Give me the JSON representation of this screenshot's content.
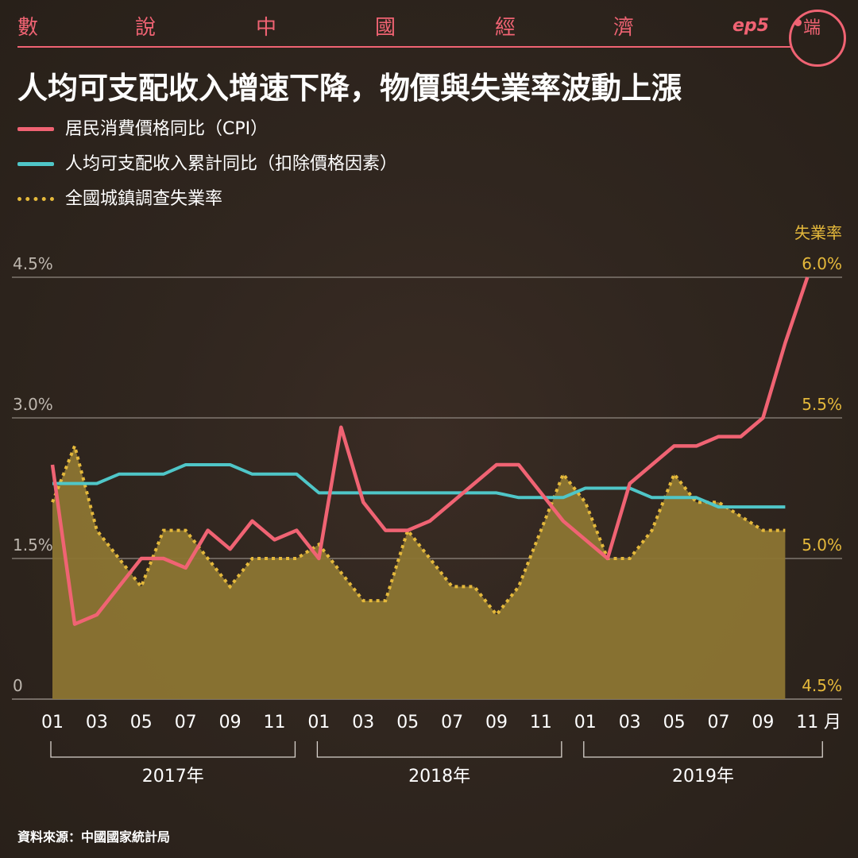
{
  "header": {
    "series_chars": [
      "數",
      "說",
      "中",
      "國",
      "經",
      "濟"
    ],
    "episode": "ep5",
    "logo_glyph": "端",
    "accent_color": "#f06373"
  },
  "title": "人均可支配收入增速下降，物價與失業率波動上漲",
  "legend": [
    {
      "label": "居民消費價格同比（CPI）",
      "color": "#f06373",
      "style": "solid"
    },
    {
      "label": "人均可支配收入累計同比（扣除價格因素）",
      "color": "#4fc6c8",
      "style": "solid"
    },
    {
      "label": "全國城鎮調查失業率",
      "color": "#e5b93b",
      "style": "dotted"
    }
  ],
  "source": "資料來源：中國國家統計局",
  "chart_data": {
    "type": "line",
    "x_ticks": [
      "01",
      "03",
      "05",
      "07",
      "09",
      "11",
      "01",
      "03",
      "05",
      "07",
      "09",
      "11",
      "01",
      "03",
      "05",
      "07",
      "09",
      "11"
    ],
    "x_unit": "月",
    "year_groups": [
      "2017年",
      "2018年",
      "2019年"
    ],
    "left_axis": {
      "ticks": [
        "0",
        "1.5%",
        "3.0%",
        "4.5%"
      ],
      "ylim": [
        0,
        4.5
      ]
    },
    "right_axis": {
      "label": "失業率",
      "ticks": [
        "4.5%",
        "5.0%",
        "5.5%",
        "6.0%"
      ],
      "ylim": [
        4.5,
        6.0
      ]
    },
    "grid": true,
    "legend_position": "top-left",
    "series": [
      {
        "name": "居民消費價格同比（CPI）",
        "axis": "left",
        "color": "#f06373",
        "points": [
          [
            "2017-01",
            2.5
          ],
          [
            "2017-02",
            0.8
          ],
          [
            "2017-03",
            0.9
          ],
          [
            "2017-04",
            1.2
          ],
          [
            "2017-05",
            1.5
          ],
          [
            "2017-06",
            1.5
          ],
          [
            "2017-07",
            1.4
          ],
          [
            "2017-08",
            1.8
          ],
          [
            "2017-09",
            1.6
          ],
          [
            "2017-10",
            1.9
          ],
          [
            "2017-11",
            1.7
          ],
          [
            "2017-12",
            1.8
          ],
          [
            "2018-01",
            1.5
          ],
          [
            "2018-02",
            2.9
          ],
          [
            "2018-03",
            2.1
          ],
          [
            "2018-04",
            1.8
          ],
          [
            "2018-05",
            1.8
          ],
          [
            "2018-06",
            1.9
          ],
          [
            "2018-07",
            2.1
          ],
          [
            "2018-08",
            2.3
          ],
          [
            "2018-09",
            2.5
          ],
          [
            "2018-10",
            2.5
          ],
          [
            "2018-11",
            2.2
          ],
          [
            "2018-12",
            1.9
          ],
          [
            "2019-02",
            1.5
          ],
          [
            "2019-03",
            2.3
          ],
          [
            "2019-04",
            2.5
          ],
          [
            "2019-05",
            2.7
          ],
          [
            "2019-06",
            2.7
          ],
          [
            "2019-07",
            2.8
          ],
          [
            "2019-08",
            2.8
          ],
          [
            "2019-09",
            3.0
          ],
          [
            "2019-10",
            3.8
          ],
          [
            "2019-11",
            4.5
          ]
        ]
      },
      {
        "name": "人均可支配收入累計同比（扣除價格因素）",
        "axis": "left",
        "color": "#4fc6c8",
        "points": [
          [
            "2017-01",
            2.3
          ],
          [
            "2017-02",
            2.3
          ],
          [
            "2017-03",
            2.3
          ],
          [
            "2017-04",
            2.4
          ],
          [
            "2017-05",
            2.4
          ],
          [
            "2017-06",
            2.4
          ],
          [
            "2017-07",
            2.5
          ],
          [
            "2017-08",
            2.5
          ],
          [
            "2017-09",
            2.5
          ],
          [
            "2017-10",
            2.4
          ],
          [
            "2017-11",
            2.4
          ],
          [
            "2017-12",
            2.4
          ],
          [
            "2018-01",
            2.2
          ],
          [
            "2018-02",
            2.2
          ],
          [
            "2018-03",
            2.2
          ],
          [
            "2018-04",
            2.2
          ],
          [
            "2018-05",
            2.2
          ],
          [
            "2018-06",
            2.2
          ],
          [
            "2018-07",
            2.2
          ],
          [
            "2018-08",
            2.2
          ],
          [
            "2018-09",
            2.2
          ],
          [
            "2018-10",
            2.15
          ],
          [
            "2018-11",
            2.15
          ],
          [
            "2018-12",
            2.15
          ],
          [
            "2019-01",
            2.25
          ],
          [
            "2019-02",
            2.25
          ],
          [
            "2019-03",
            2.25
          ],
          [
            "2019-04",
            2.15
          ],
          [
            "2019-05",
            2.15
          ],
          [
            "2019-06",
            2.15
          ],
          [
            "2019-07",
            2.05
          ],
          [
            "2019-08",
            2.05
          ],
          [
            "2019-09",
            2.05
          ],
          [
            "2019-10",
            2.05
          ]
        ]
      },
      {
        "name": "全國城鎮調查失業率",
        "axis": "right",
        "color": "#e5b93b",
        "area": true,
        "points": [
          [
            "2017-01",
            5.2
          ],
          [
            "2017-02",
            5.4
          ],
          [
            "2017-03",
            5.1
          ],
          [
            "2017-04",
            5.0
          ],
          [
            "2017-05",
            4.9
          ],
          [
            "2017-06",
            5.1
          ],
          [
            "2017-07",
            5.1
          ],
          [
            "2017-08",
            5.0
          ],
          [
            "2017-09",
            4.9
          ],
          [
            "2017-10",
            5.0
          ],
          [
            "2017-11",
            5.0
          ],
          [
            "2017-12",
            5.0
          ],
          [
            "2018-01",
            5.05
          ],
          [
            "2018-02",
            4.95
          ],
          [
            "2018-03",
            4.85
          ],
          [
            "2018-04",
            4.85
          ],
          [
            "2018-05",
            5.1
          ],
          [
            "2018-06",
            5.0
          ],
          [
            "2018-07",
            4.9
          ],
          [
            "2018-08",
            4.9
          ],
          [
            "2018-09",
            4.8
          ],
          [
            "2018-10",
            4.9
          ],
          [
            "2018-11",
            5.1
          ],
          [
            "2018-12",
            5.3
          ],
          [
            "2019-01",
            5.2
          ],
          [
            "2019-02",
            5.0
          ],
          [
            "2019-03",
            5.0
          ],
          [
            "2019-04",
            5.1
          ],
          [
            "2019-05",
            5.3
          ],
          [
            "2019-06",
            5.2
          ],
          [
            "2019-07",
            5.2
          ],
          [
            "2019-08",
            5.15
          ],
          [
            "2019-09",
            5.1
          ],
          [
            "2019-10",
            5.1
          ]
        ]
      }
    ]
  }
}
